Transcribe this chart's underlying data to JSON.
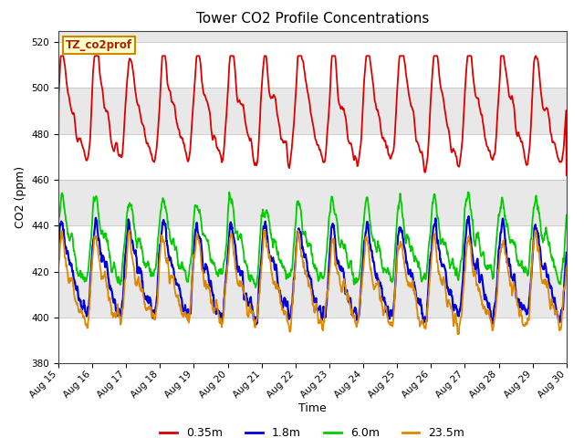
{
  "title": "Tower CO2 Profile Concentrations",
  "xlabel": "Time",
  "ylabel": "CO2 (ppm)",
  "ylim": [
    380,
    525
  ],
  "yticks": [
    380,
    400,
    420,
    440,
    460,
    480,
    500,
    520
  ],
  "label_box_text": "TZ_co2prof",
  "background_color": "#ffffff",
  "plot_bg_color": "#e8e8e8",
  "white_band_color": "#f8f8f8",
  "series": [
    {
      "label": "0.35m",
      "color": "#dd0000",
      "linewidth": 1.3
    },
    {
      "label": "1.8m",
      "color": "#0000dd",
      "linewidth": 1.6
    },
    {
      "label": "6.0m",
      "color": "#00cc00",
      "linewidth": 1.3
    },
    {
      "label": "23.5m",
      "color": "#dd8800",
      "linewidth": 1.3
    }
  ],
  "n_days": 15,
  "start_day": 15,
  "points_per_day": 96,
  "seed": 7,
  "legend_fontsize": 9,
  "title_fontsize": 11,
  "axis_label_fontsize": 9,
  "tick_fontsize": 7.5
}
